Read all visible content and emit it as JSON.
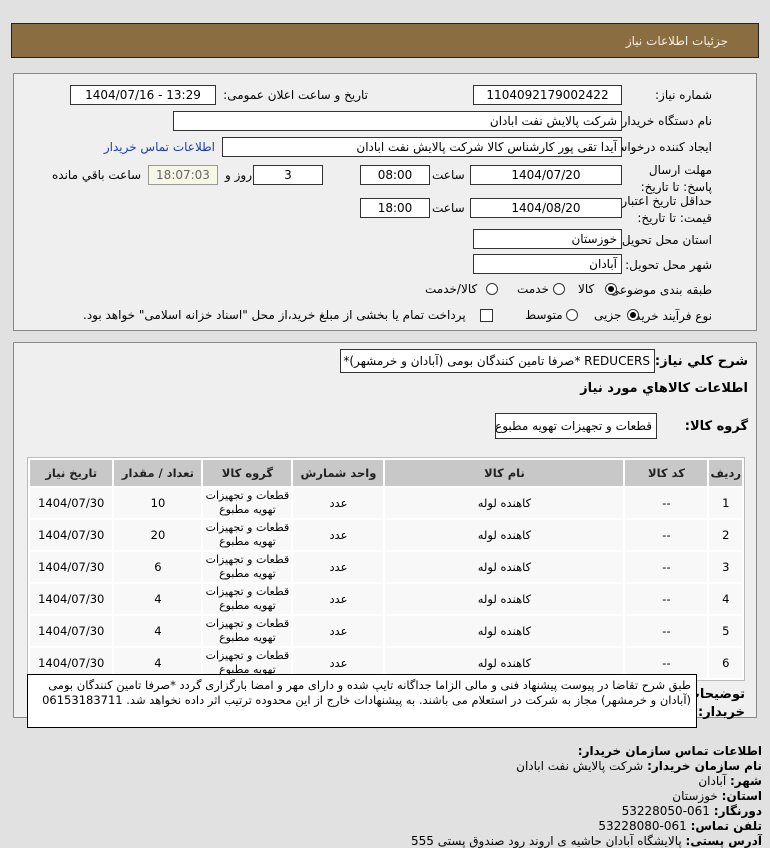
{
  "header": {
    "title": "جزئیات اطلاعات نیاز"
  },
  "form": {
    "need_number_label": "شماره نیاز:",
    "need_number": "1104092179002422",
    "announce_label": "تاریخ و ساعت اعلان عمومی:",
    "announce_value": "1404/07/16 - 13:29",
    "buyer_label": "نام دستگاه خریدار:",
    "buyer_value": "شرکت پالایش نفت ابادان",
    "creator_label": "ایجاد کننده درخواست:",
    "creator_value": "آیدا تقی پور کارشناس کالا شرکت پالایش نفت ابادان",
    "contact_link": "اطلاعات تماس خریدار",
    "deadline_label": "مهلت ارسال پاسخ: تا تاریخ:",
    "deadline_date": "1404/07/20",
    "time_label": "ساعت",
    "deadline_time": "08:00",
    "days": "3",
    "days_label": "روز و",
    "timer": "18:07:03",
    "remaining_label": "ساعت باقي مانده",
    "validity_label": "حداقل تاریخ اعتبار قیمت: تا تاریخ:",
    "validity_date": "1404/08/20",
    "validity_time": "18:00",
    "province_label": "استان محل تحویل:",
    "province": "خوزستان",
    "city_label": "شهر محل تحویل:",
    "city": "آبادان",
    "category_label": "طبقه بندی موضوعی:",
    "category_options": [
      "کالا",
      "خدمت",
      "کالا/خدمت"
    ],
    "category_selected": "کالا",
    "process_label": "نوع فرآیند خرید :",
    "process_options": [
      "جزیی",
      "متوسط"
    ],
    "process_selected": "جزیی",
    "payment_note": "پرداخت تمام یا بخشی از مبلغ خرید،از محل \"اسناد خزانه اسلامی\" خواهد بود."
  },
  "details": {
    "summary_label": "شرح كلي نياز:",
    "summary": "REDUCERS *صرفا تامین کنندگان بومی (آبادان و خرمشهر)*",
    "goods_title": "اطلاعات كالاهاي مورد نياز",
    "group_label": "گروه کالا:",
    "group_value": "قطعات و تجهیزات تهویه مطبوع",
    "columns": [
      "ردیف",
      "کد کالا",
      "نام کالا",
      "واحد شمارش",
      "گروه کالا",
      "تعداد / مقدار",
      "تاریخ نیاز"
    ],
    "rows": [
      [
        "1",
        "--",
        "کاهنده لوله",
        "عدد",
        "قطعات و تجهیزات تهویه مطبوع",
        "10",
        "1404/07/30"
      ],
      [
        "2",
        "--",
        "کاهنده لوله",
        "عدد",
        "قطعات و تجهیزات تهویه مطبوع",
        "20",
        "1404/07/30"
      ],
      [
        "3",
        "--",
        "کاهنده لوله",
        "عدد",
        "قطعات و تجهیزات تهویه مطبوع",
        "6",
        "1404/07/30"
      ],
      [
        "4",
        "--",
        "کاهنده لوله",
        "عدد",
        "قطعات و تجهیزات تهویه مطبوع",
        "4",
        "1404/07/30"
      ],
      [
        "5",
        "--",
        "کاهنده لوله",
        "عدد",
        "قطعات و تجهیزات تهویه مطبوع",
        "4",
        "1404/07/30"
      ],
      [
        "6",
        "--",
        "کاهنده لوله",
        "عدد",
        "قطعات و تجهیزات تهویه مطبوع",
        "4",
        "1404/07/30"
      ]
    ],
    "notes_label": "توضیحات خریدار:",
    "notes": "طبق شرح تقاضا در پیوست پیشنهاد فنی و مالی الزاما جداگانه تایپ شده و دارای مهر و امضا بارگزاری گردد *صرفا تامین کنندگان بومی (آبادان و خرمشهر) مجاز به شرکت در استعلام می باشند. به پیشنهادات خارج از این محدوده ترتیب اثر داده نخواهد شد. 06153183711"
  },
  "contact": {
    "title": "اطلاعات تماس سازمان خریدار:",
    "items": [
      {
        "label": "نام سازمان خریدار:",
        "value": "شرکت پالایش نفت ابادان"
      },
      {
        "label": "شهر:",
        "value": "آبادان"
      },
      {
        "label": "استان:",
        "value": "خوزستان"
      },
      {
        "label": "دورنگار:",
        "value": "061-53228050"
      },
      {
        "label": "تلفن تماس:",
        "value": "061-53228080"
      },
      {
        "label": "آدرس پستی:",
        "value": "پالایشگاه آبادان حاشیه ی اروند رود صندوق پستی 555"
      }
    ]
  }
}
